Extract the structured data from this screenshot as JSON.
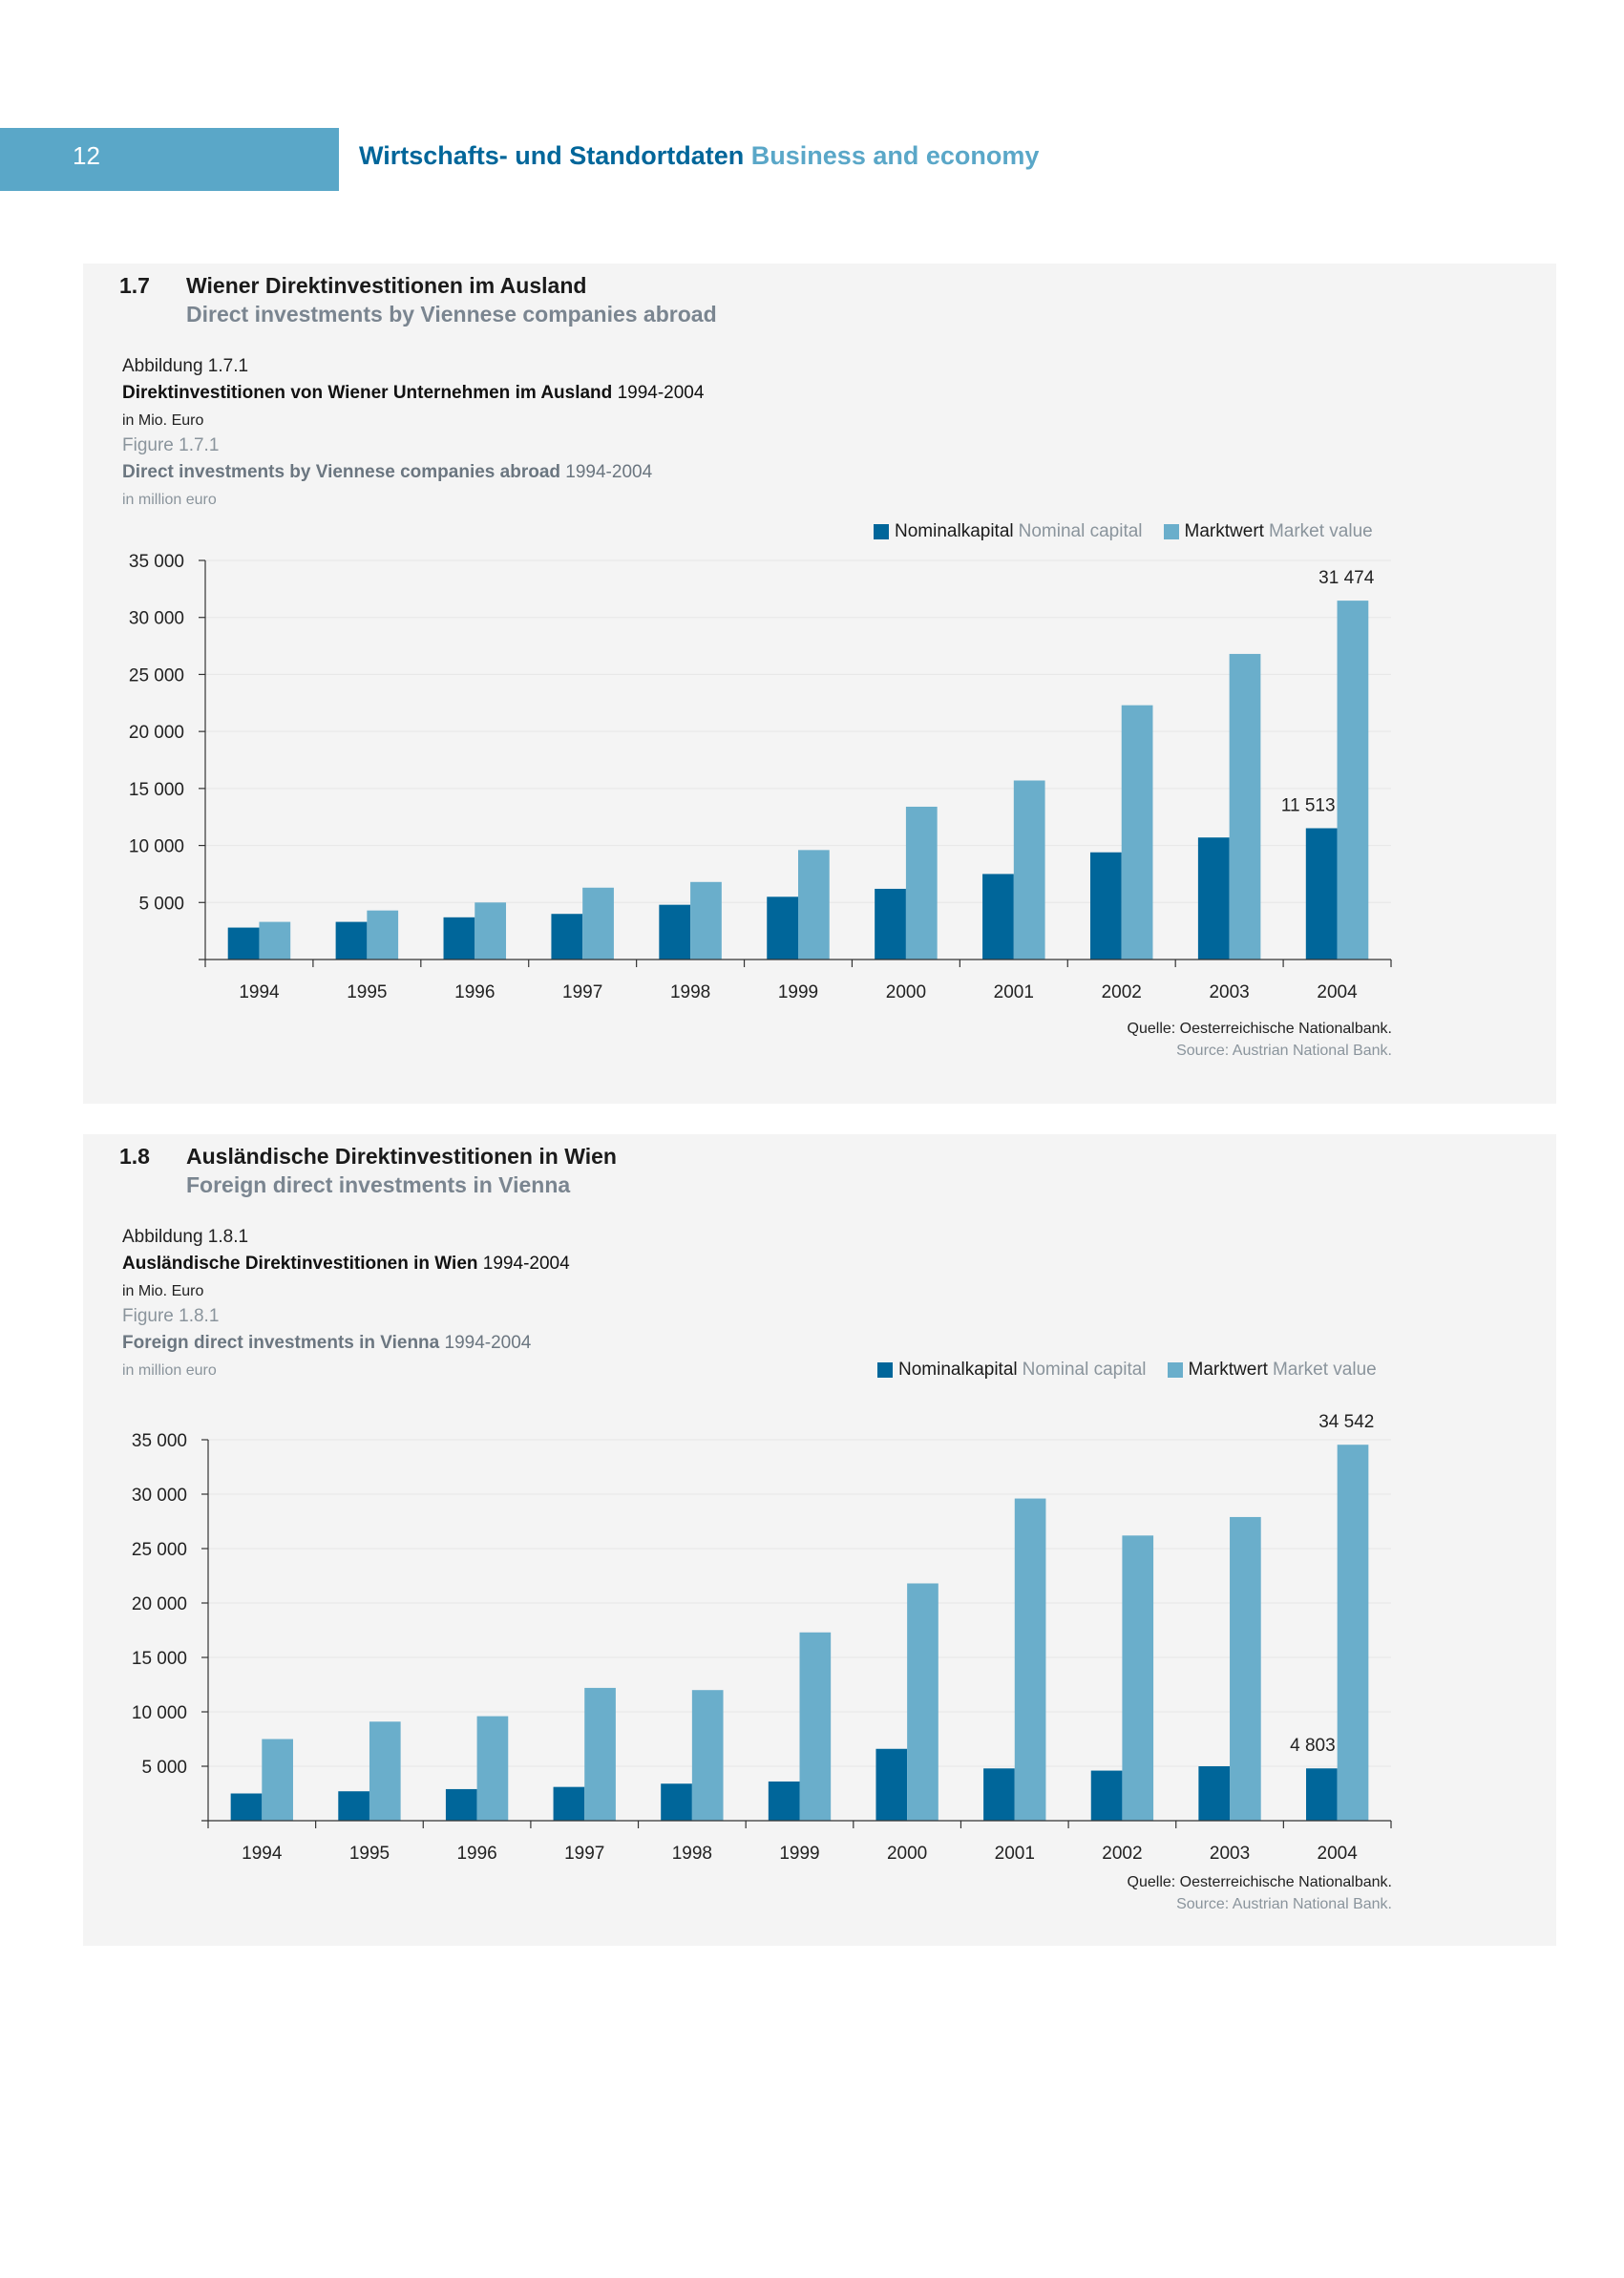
{
  "header": {
    "page_number": "12",
    "title_de": "Wirtschafts- und Standortdaten",
    "title_en": "Business and economy"
  },
  "sections": [
    {
      "number": "1.7",
      "title_de": "Wiener Direktinvestitionen im Ausland",
      "title_en": "Direct investments by Viennese companies abroad",
      "figure_label_de": "Abbildung 1.7.1",
      "figure_title_de": "Direktinvestitionen von Wiener Unternehmen im Ausland",
      "figure_years": "1994-2004",
      "unit_de": "in Mio. Euro",
      "figure_label_en": "Figure 1.7.1",
      "figure_title_en": "Direct investments by Viennese companies abroad",
      "unit_en": "in million euro",
      "source_de": "Quelle: Oesterreichische Nationalbank.",
      "source_en": "Source: Austrian National Bank."
    },
    {
      "number": "1.8",
      "title_de": "Ausländische Direktinvestitionen in Wien",
      "title_en": "Foreign direct investments in Vienna",
      "figure_label_de": "Abbildung 1.8.1",
      "figure_title_de": "Ausländische Direktinvestitionen in Wien",
      "figure_years": "1994-2004",
      "unit_de": "in Mio. Euro",
      "figure_label_en": "Figure 1.8.1",
      "figure_title_en": "Foreign direct investments in Vienna",
      "unit_en": "in million euro",
      "source_de": "Quelle: Oesterreichische Nationalbank.",
      "source_en": "Source: Austrian National Bank."
    }
  ],
  "legend": {
    "nominal_de": "Nominalkapital",
    "nominal_en": "Nominal capital",
    "market_de": "Marktwert",
    "market_en": "Market value"
  },
  "colors": {
    "nominal": "#00669a",
    "market": "#6aaecb",
    "accent": "#5aa7c8"
  },
  "chart_data": [
    {
      "type": "bar",
      "title": "Direktinvestitionen von Wiener Unternehmen im Ausland 1994-2004",
      "categories": [
        "1994",
        "1995",
        "1996",
        "1997",
        "1998",
        "1999",
        "2000",
        "2001",
        "2002",
        "2003",
        "2004"
      ],
      "series": [
        {
          "name": "Nominalkapital Nominal capital",
          "values": [
            2800,
            3300,
            3700,
            4000,
            4800,
            5500,
            6200,
            7500,
            9400,
            10700,
            11513
          ]
        },
        {
          "name": "Marktwert Market value",
          "values": [
            3300,
            4300,
            5000,
            6300,
            6800,
            9600,
            13400,
            15700,
            22300,
            26800,
            31474
          ]
        }
      ],
      "ylim": [
        0,
        35000
      ],
      "yticks": [
        5000,
        10000,
        15000,
        20000,
        25000,
        30000,
        35000
      ],
      "ytick_labels": [
        "5 000",
        "10 000",
        "15 000",
        "20 000",
        "25 000",
        "30 000",
        "35 000"
      ],
      "annotations": [
        {
          "series": 0,
          "index": 10,
          "text": "11 513"
        },
        {
          "series": 1,
          "index": 10,
          "text": "31 474"
        }
      ],
      "xlabel": "",
      "ylabel": ""
    },
    {
      "type": "bar",
      "title": "Ausländische Direktinvestitionen in Wien 1994-2004",
      "categories": [
        "1994",
        "1995",
        "1996",
        "1997",
        "1998",
        "1999",
        "2000",
        "2001",
        "2002",
        "2003",
        "2004"
      ],
      "series": [
        {
          "name": "Nominalkapital Nominal capital",
          "values": [
            2500,
            2700,
            2900,
            3100,
            3400,
            3600,
            6600,
            4800,
            4600,
            5000,
            4803
          ]
        },
        {
          "name": "Marktwert Market value",
          "values": [
            7500,
            9100,
            9600,
            12200,
            12000,
            17300,
            21800,
            29600,
            26200,
            27900,
            34542
          ]
        }
      ],
      "ylim": [
        0,
        35000
      ],
      "yticks": [
        5000,
        10000,
        15000,
        20000,
        25000,
        30000,
        35000
      ],
      "ytick_labels": [
        "5 000",
        "10 000",
        "15 000",
        "20 000",
        "25 000",
        "30 000",
        "35 000"
      ],
      "annotations": [
        {
          "series": 0,
          "index": 10,
          "text": "4 803"
        },
        {
          "series": 1,
          "index": 10,
          "text": "34 542"
        }
      ],
      "xlabel": "",
      "ylabel": ""
    }
  ]
}
